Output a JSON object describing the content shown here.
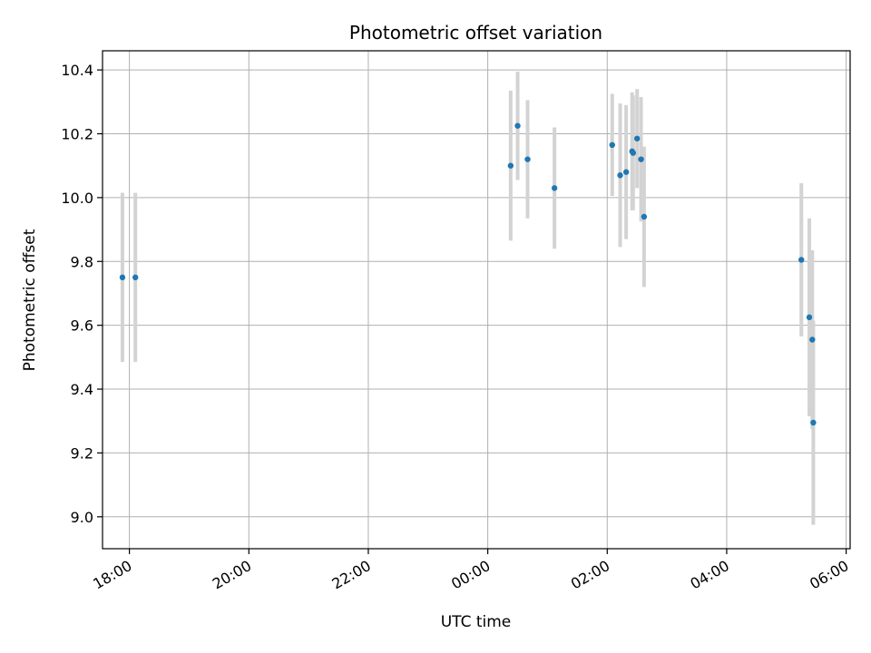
{
  "chart_data": {
    "type": "scatter",
    "title": "Photometric offset variation",
    "xlabel": "UTC time",
    "ylabel": "Photometric offset",
    "grid": true,
    "xlim": [
      "2000-01-01T17:33:00",
      "2000-01-02T06:04:00"
    ],
    "ylim": [
      8.9,
      10.46
    ],
    "x_ticks": [
      {
        "t": "2000-01-01T18:00:00",
        "label": "18:00"
      },
      {
        "t": "2000-01-01T20:00:00",
        "label": "20:00"
      },
      {
        "t": "2000-01-01T22:00:00",
        "label": "22:00"
      },
      {
        "t": "2000-01-02T00:00:00",
        "label": "00:00"
      },
      {
        "t": "2000-01-02T02:00:00",
        "label": "02:00"
      },
      {
        "t": "2000-01-02T04:00:00",
        "label": "04:00"
      },
      {
        "t": "2000-01-02T06:00:00",
        "label": "06:00"
      }
    ],
    "y_ticks": [
      "9.0",
      "9.2",
      "9.4",
      "9.6",
      "9.8",
      "10.0",
      "10.2",
      "10.4"
    ],
    "marker_color": "#1f77b4",
    "errorbar_color": "#d3d3d3",
    "points": [
      {
        "x": "2000-01-01T17:53:00",
        "y": 9.75,
        "err": 0.265
      },
      {
        "x": "2000-01-01T18:06:00",
        "y": 9.75,
        "err": 0.265
      },
      {
        "x": "2000-01-02T00:23:00",
        "y": 10.1,
        "err": 0.235
      },
      {
        "x": "2000-01-02T00:30:00",
        "y": 10.225,
        "err": 0.17
      },
      {
        "x": "2000-01-02T00:40:00",
        "y": 10.12,
        "err": 0.185
      },
      {
        "x": "2000-01-02T01:07:00",
        "y": 10.03,
        "err": 0.19
      },
      {
        "x": "2000-01-02T02:05:00",
        "y": 10.165,
        "err": 0.16
      },
      {
        "x": "2000-01-02T02:13:00",
        "y": 10.07,
        "err": 0.225
      },
      {
        "x": "2000-01-02T02:19:00",
        "y": 10.08,
        "err": 0.21
      },
      {
        "x": "2000-01-02T02:25:00",
        "y": 10.145,
        "err": 0.185
      },
      {
        "x": "2000-01-02T02:26:00",
        "y": 10.14,
        "err": 0.18
      },
      {
        "x": "2000-01-02T02:30:00",
        "y": 10.185,
        "err": 0.155
      },
      {
        "x": "2000-01-02T02:34:00",
        "y": 10.12,
        "err": 0.195
      },
      {
        "x": "2000-01-02T02:37:00",
        "y": 9.94,
        "err": 0.22
      },
      {
        "x": "2000-01-02T05:15:00",
        "y": 9.805,
        "err": 0.24
      },
      {
        "x": "2000-01-02T05:23:00",
        "y": 9.625,
        "err": 0.31
      },
      {
        "x": "2000-01-02T05:26:00",
        "y": 9.555,
        "err": 0.28
      },
      {
        "x": "2000-01-02T05:27:00",
        "y": 9.295,
        "err": 0.32
      }
    ]
  }
}
